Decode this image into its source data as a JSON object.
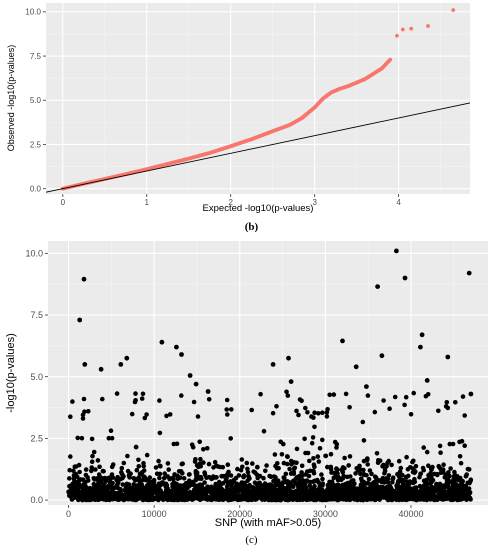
{
  "colors": {
    "qq_points": "#f8766d",
    "manhattan_points": "#000000",
    "ref_line": "#000000",
    "panel": "#ebebeb"
  },
  "chart_data": [
    {
      "type": "scatter",
      "panel": "(b)",
      "xlabel": "Expected -log10(p-values)",
      "ylabel": "Observed -log10(p-values)",
      "xlim": [
        -0.2,
        4.85
      ],
      "ylim": [
        -0.3,
        10.5
      ],
      "xticks": [
        "0",
        "1",
        "2",
        "3",
        "4"
      ],
      "yticks": [
        "0.0",
        "2.5",
        "5.0",
        "7.5",
        "10.0"
      ],
      "grid": true,
      "reference_line": {
        "intercept": 0,
        "slope": 1
      },
      "points": [
        [
          0.0,
          0.0
        ],
        [
          0.25,
          0.28
        ],
        [
          0.5,
          0.55
        ],
        [
          0.75,
          0.82
        ],
        [
          1.0,
          1.1
        ],
        [
          1.25,
          1.4
        ],
        [
          1.5,
          1.7
        ],
        [
          1.75,
          2.02
        ],
        [
          2.0,
          2.4
        ],
        [
          2.25,
          2.8
        ],
        [
          2.5,
          3.25
        ],
        [
          2.7,
          3.6
        ],
        [
          2.85,
          4.0
        ],
        [
          3.0,
          4.6
        ],
        [
          3.1,
          5.1
        ],
        [
          3.2,
          5.45
        ],
        [
          3.3,
          5.65
        ],
        [
          3.4,
          5.8
        ],
        [
          3.5,
          6.0
        ],
        [
          3.6,
          6.2
        ],
        [
          3.7,
          6.5
        ],
        [
          3.8,
          6.8
        ],
        [
          3.9,
          7.3
        ],
        [
          3.98,
          8.65
        ],
        [
          4.05,
          9.0
        ],
        [
          4.15,
          9.05
        ],
        [
          4.35,
          9.2
        ],
        [
          4.65,
          10.1
        ]
      ]
    },
    {
      "type": "scatter",
      "panel": "(c)",
      "xlabel": "SNP (with mAF>0.05)",
      "ylabel": "-log10(p-values)",
      "xlim": [
        -2400,
        49000
      ],
      "ylim": [
        -0.2,
        10.5
      ],
      "xticks": [
        "0",
        "10000",
        "20000",
        "30000",
        "40000"
      ],
      "yticks": [
        "0.0",
        "2.5",
        "5.0",
        "7.5",
        "10.0"
      ],
      "grid": true,
      "n_snps_approx": 47000,
      "highlighted_points": [
        [
          1800,
          8.95
        ],
        [
          1300,
          7.3
        ],
        [
          1900,
          5.5
        ],
        [
          3800,
          5.3
        ],
        [
          6800,
          5.75
        ],
        [
          6100,
          5.5
        ],
        [
          10900,
          6.4
        ],
        [
          12600,
          6.2
        ],
        [
          13200,
          5.9
        ],
        [
          14200,
          5.05
        ],
        [
          14900,
          4.7
        ],
        [
          16300,
          4.4
        ],
        [
          23900,
          5.5
        ],
        [
          25700,
          5.75
        ],
        [
          26000,
          4.8
        ],
        [
          32000,
          6.45
        ],
        [
          33600,
          5.4
        ],
        [
          34800,
          4.6
        ],
        [
          36100,
          8.65
        ],
        [
          36600,
          5.85
        ],
        [
          38300,
          10.1
        ],
        [
          39300,
          9.0
        ],
        [
          41300,
          6.7
        ],
        [
          41100,
          6.2
        ],
        [
          41900,
          4.85
        ],
        [
          44300,
          5.8
        ],
        [
          46800,
          9.2
        ],
        [
          47000,
          4.3
        ]
      ]
    }
  ],
  "captions": {
    "b": "(b)",
    "c": "(c)"
  }
}
